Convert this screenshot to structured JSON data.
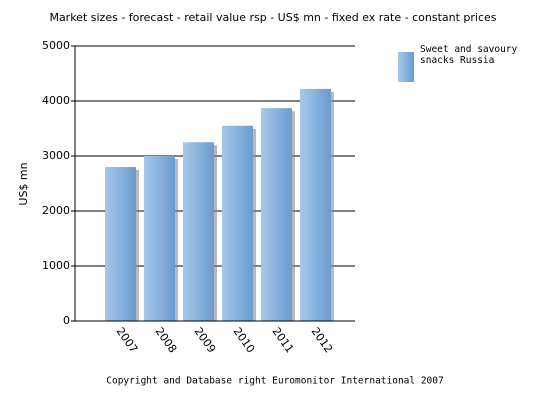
{
  "chart_data": {
    "type": "bar",
    "title": "Market sizes  -  forecast  - retail value rsp  - US$ mn  - fixed ex rate  - constant prices",
    "y_label": "US$ mn",
    "footer": "Copyright and Database right Euromonitor International 2007",
    "categories": [
      "2007",
      "2008",
      "2009",
      "2010",
      "2011",
      "2012"
    ],
    "series": [
      {
        "name": "Sweet and savoury snacks Russia",
        "color": "#7ba7d6",
        "values": [
          2800,
          3000,
          3250,
          3550,
          3870,
          4220
        ]
      }
    ],
    "ylim": [
      0,
      5000
    ],
    "yticks": [
      0,
      1000,
      2000,
      3000,
      4000,
      5000
    ],
    "grid": true,
    "legend": "top-right"
  }
}
